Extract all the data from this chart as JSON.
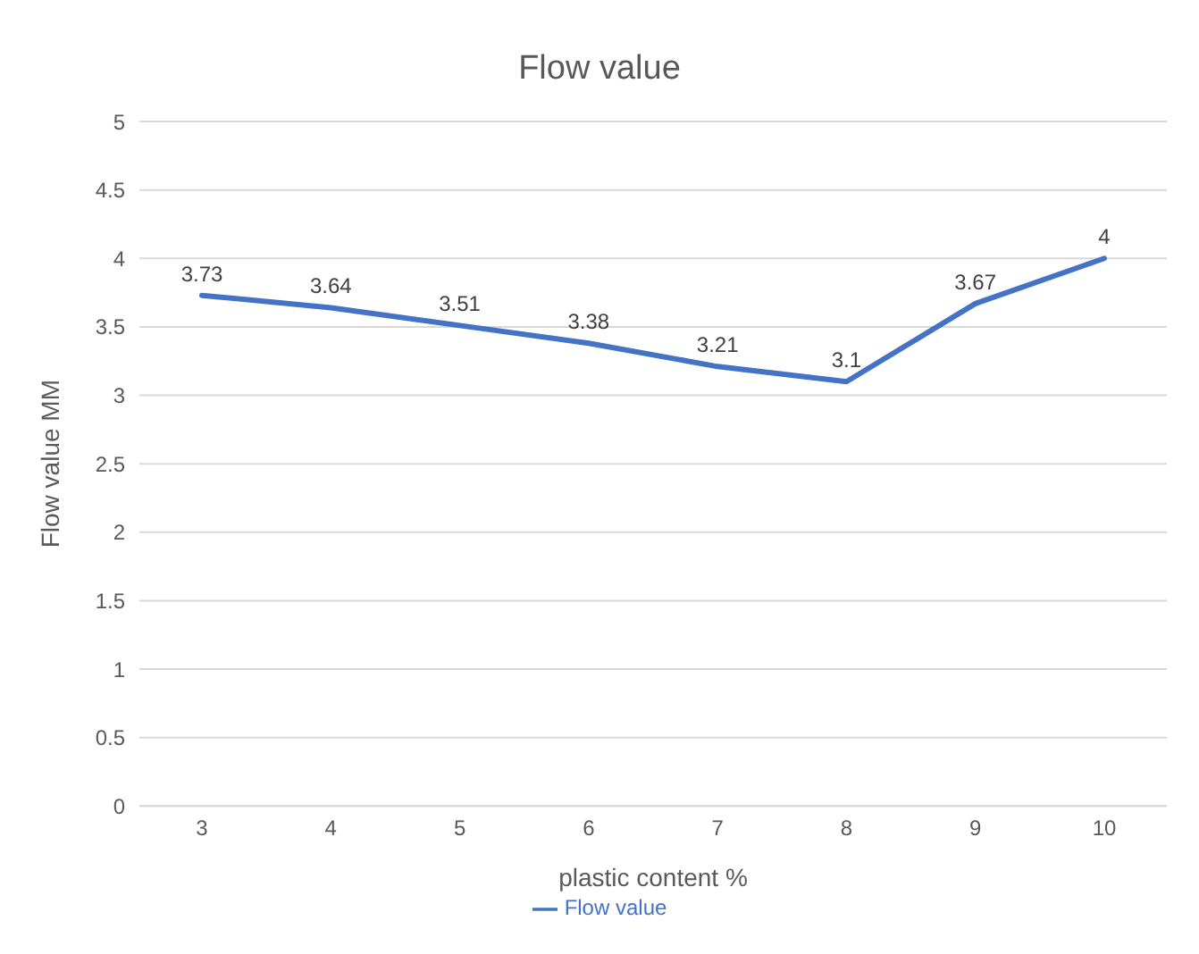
{
  "chart_data": {
    "type": "line",
    "title": "Flow value",
    "xlabel": "plastic content %",
    "ylabel": "Flow value MM",
    "categories": [
      "3",
      "4",
      "5",
      "6",
      "7",
      "8",
      "9",
      "10"
    ],
    "series": [
      {
        "name": "Flow value",
        "color": "#4472c4",
        "values": [
          3.73,
          3.64,
          3.51,
          3.38,
          3.21,
          3.1,
          3.67,
          4
        ]
      }
    ],
    "ylim": [
      0,
      5
    ],
    "yticks": [
      0,
      0.5,
      1,
      1.5,
      2,
      2.5,
      3,
      3.5,
      4,
      4.5,
      5
    ],
    "grid": "y",
    "legend": "bottom",
    "marker": "none",
    "line_style": "solid",
    "data_labels": true
  }
}
